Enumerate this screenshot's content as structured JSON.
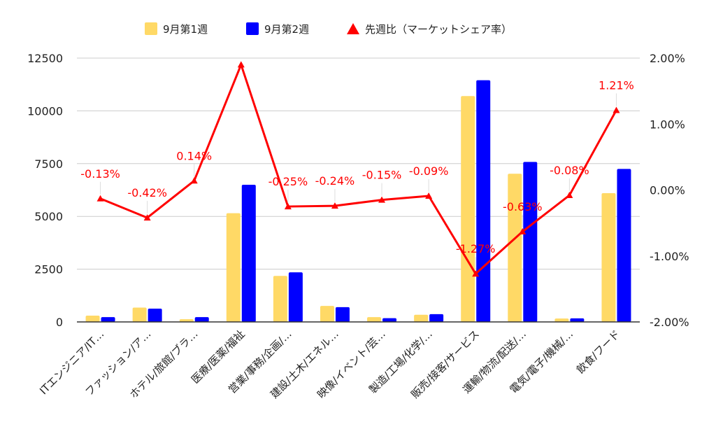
{
  "chart_data": {
    "type": "bar",
    "categories": [
      "ITエンジニア/IT…",
      "ファッション/ア…",
      "ホテル/旅館/ブラ…",
      "医療/医薬/福祉",
      "営業/事務/企画/…",
      "建設/土木/エネル…",
      "映像/イベント/芸…",
      "製造/工場/化学/…",
      "販売/接客/サービス",
      "運輸/物流/配送/…",
      "電気/電子/機械/…",
      "飲食/フード"
    ],
    "series": [
      {
        "name": "9月第1週",
        "type": "bar",
        "axis": "left",
        "color": "#ffd966",
        "values": [
          300,
          680,
          130,
          5150,
          2180,
          760,
          230,
          340,
          10700,
          7020,
          160,
          6100
        ]
      },
      {
        "name": "9月第2週",
        "type": "bar",
        "axis": "left",
        "color": "#0000ff",
        "values": [
          230,
          630,
          230,
          6500,
          2350,
          700,
          180,
          370,
          11450,
          7580,
          170,
          7250
        ]
      },
      {
        "name": "先週比（マーケットシェア率）",
        "type": "line",
        "axis": "right",
        "color": "#ff0000",
        "values": [
          -0.13,
          -0.42,
          0.14,
          1.9,
          -0.25,
          -0.24,
          -0.15,
          -0.09,
          -1.27,
          -0.63,
          -0.08,
          1.21
        ],
        "labels": [
          "-0.13%",
          "-0.42%",
          "0.14%",
          "",
          "-0.25%",
          "-0.24%",
          "-0.15%",
          "-0.09%",
          "-1.27%",
          "-0.63%",
          "-0.08%",
          "1.21%"
        ]
      }
    ],
    "y_left": {
      "min": 0,
      "max": 12500,
      "ticks": [
        "0",
        "2500",
        "5000",
        "7500",
        "10000",
        "12500"
      ]
    },
    "y_right": {
      "min": -2,
      "max": 2,
      "ticks": [
        "-2.00%",
        "-1.00%",
        "0.00%",
        "1.00%",
        "2.00%"
      ]
    },
    "grid": true,
    "legend_position": "top"
  }
}
